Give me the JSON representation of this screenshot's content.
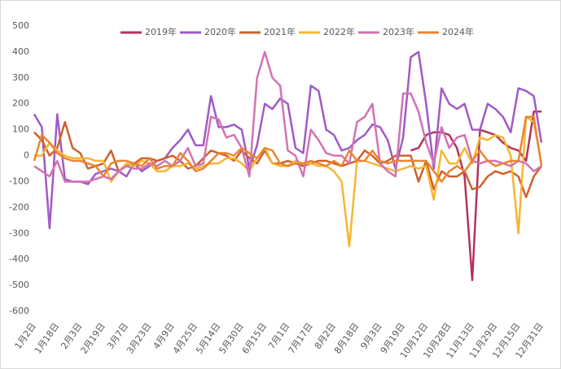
{
  "chart_data": {
    "type": "line",
    "categories": [
      "1月2日",
      null,
      null,
      "1月18日",
      null,
      null,
      "2月3日",
      null,
      null,
      "2月19日",
      null,
      null,
      "3月7日",
      null,
      null,
      "3月23日",
      null,
      null,
      "4月9日",
      null,
      null,
      "4月25日",
      null,
      null,
      "5月14日",
      null,
      null,
      "5月30日",
      null,
      null,
      "6月15日",
      null,
      null,
      "7月1日",
      null,
      null,
      "7月17日",
      null,
      null,
      "8月2日",
      null,
      null,
      "8月18日",
      null,
      null,
      "9月3日",
      null,
      null,
      "9月19日",
      null,
      null,
      "10月12日",
      null,
      null,
      "10月28日",
      null,
      null,
      "11月13日",
      null,
      null,
      "11月29日",
      null,
      null,
      "12月15日",
      null,
      null,
      "12月31日"
    ],
    "ylim": [
      -600,
      500
    ],
    "yticks": [
      -600,
      -500,
      -400,
      -300,
      -200,
      -100,
      0,
      100,
      200,
      300,
      400,
      500
    ],
    "series": [
      {
        "name": "2019年",
        "color": "#b5325a",
        "values": [
          null,
          null,
          null,
          null,
          null,
          null,
          null,
          null,
          null,
          null,
          null,
          null,
          null,
          null,
          null,
          null,
          null,
          null,
          null,
          null,
          null,
          null,
          null,
          null,
          null,
          null,
          null,
          null,
          null,
          null,
          null,
          null,
          null,
          null,
          null,
          null,
          null,
          null,
          null,
          null,
          null,
          null,
          null,
          null,
          null,
          null,
          null,
          null,
          null,
          20,
          30,
          80,
          90,
          90,
          80,
          30,
          -80,
          -480,
          100,
          90,
          80,
          50,
          30,
          20,
          -20,
          170,
          170
        ]
      },
      {
        "name": "2020年",
        "color": "#a05ac6",
        "values": [
          160,
          110,
          -280,
          160,
          -90,
          -100,
          -100,
          -110,
          -70,
          -60,
          -50,
          -60,
          -80,
          -30,
          -60,
          -40,
          -20,
          -10,
          30,
          60,
          100,
          40,
          40,
          230,
          110,
          110,
          120,
          100,
          -50,
          40,
          200,
          180,
          220,
          200,
          30,
          10,
          270,
          250,
          100,
          80,
          20,
          30,
          60,
          80,
          120,
          110,
          60,
          -50,
          70,
          380,
          400,
          200,
          -50,
          260,
          200,
          180,
          200,
          100,
          100,
          200,
          180,
          150,
          90,
          260,
          250,
          230,
          50
        ]
      },
      {
        "name": "2021年",
        "color": "#d0602c",
        "values": [
          90,
          60,
          0,
          30,
          130,
          30,
          10,
          -50,
          -40,
          -30,
          20,
          -60,
          -40,
          -30,
          -10,
          -10,
          -20,
          -10,
          0,
          -20,
          -50,
          -40,
          -10,
          20,
          10,
          0,
          -20,
          20,
          -10,
          -30,
          20,
          -30,
          -30,
          -20,
          -30,
          -40,
          -30,
          -20,
          -20,
          -30,
          -40,
          -30,
          -20,
          20,
          0,
          -30,
          -20,
          0,
          0,
          0,
          -100,
          -20,
          -130,
          -60,
          -80,
          -80,
          -60,
          -130,
          -120,
          -80,
          -60,
          -70,
          -60,
          -80,
          -160,
          -80,
          -40
        ]
      },
      {
        "name": "2022年",
        "color": "#f6b632",
        "values": [
          0,
          0,
          50,
          20,
          0,
          -10,
          -10,
          -10,
          -20,
          -20,
          -100,
          -60,
          -30,
          -40,
          -20,
          -30,
          -60,
          -60,
          -40,
          -40,
          -30,
          -50,
          -40,
          -30,
          -30,
          -10,
          -10,
          -30,
          -60,
          -10,
          30,
          -30,
          -40,
          -40,
          -20,
          -30,
          -30,
          -40,
          -40,
          -60,
          -100,
          -350,
          -20,
          -20,
          -30,
          -40,
          -50,
          -60,
          -50,
          -40,
          -50,
          -40,
          -170,
          20,
          -30,
          -30,
          30,
          -30,
          70,
          60,
          80,
          70,
          0,
          -300,
          150,
          130,
          -30
        ]
      },
      {
        "name": "2023年",
        "color": "#d272b4",
        "values": [
          -40,
          -60,
          -80,
          -20,
          -100,
          -100,
          -100,
          -100,
          -90,
          -80,
          -90,
          -60,
          -40,
          -50,
          -50,
          -30,
          -40,
          -20,
          -40,
          -20,
          30,
          -40,
          -30,
          150,
          140,
          70,
          80,
          30,
          -80,
          300,
          400,
          300,
          270,
          20,
          0,
          -80,
          100,
          60,
          10,
          0,
          0,
          -30,
          130,
          150,
          200,
          -30,
          -60,
          -80,
          240,
          240,
          170,
          50,
          -30,
          110,
          30,
          70,
          80,
          -20,
          -30,
          -20,
          -20,
          -30,
          -40,
          -20,
          -30,
          -60,
          -40
        ]
      },
      {
        "name": "2024年",
        "color": "#ec8430",
        "values": [
          -20,
          80,
          50,
          10,
          -10,
          -20,
          -20,
          -30,
          -40,
          -80,
          -30,
          -20,
          -20,
          -30,
          -40,
          -10,
          -50,
          -40,
          -40,
          10,
          -20,
          -60,
          -50,
          -20,
          10,
          10,
          0,
          30,
          10,
          -10,
          30,
          20,
          -30,
          -40,
          -30,
          -30,
          -20,
          -30,
          -40,
          -20,
          -40,
          20,
          -20,
          -20,
          20,
          -20,
          -30,
          -20,
          -20,
          -20,
          -20,
          -20,
          -60,
          -100,
          -60,
          -40,
          -60,
          -20,
          20,
          -20,
          -40,
          -30,
          -20,
          -20,
          150,
          150,
          -40
        ]
      }
    ]
  }
}
